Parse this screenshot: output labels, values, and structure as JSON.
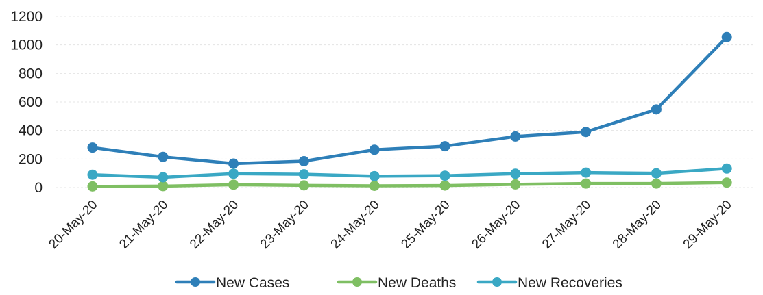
{
  "chart_data": {
    "type": "line",
    "categories": [
      "20-May-20",
      "21-May-20",
      "22-May-20",
      "23-May-20",
      "24-May-20",
      "25-May-20",
      "26-May-20",
      "27-May-20",
      "28-May-20",
      "29-May-20"
    ],
    "series": [
      {
        "name": "New Cases",
        "color": "#2e7fb8",
        "values": [
          280,
          215,
          168,
          185,
          265,
          290,
          358,
          390,
          548,
          1055
        ]
      },
      {
        "name": "New Deaths",
        "color": "#7fbf63",
        "values": [
          8,
          10,
          20,
          15,
          12,
          14,
          22,
          28,
          28,
          35
        ]
      },
      {
        "name": "New Recoveries",
        "color": "#3aa8c4",
        "values": [
          90,
          72,
          97,
          93,
          80,
          83,
          97,
          105,
          100,
          133
        ]
      }
    ],
    "yticks": [
      "0",
      "200",
      "400",
      "600",
      "800",
      "1000",
      "1200"
    ],
    "ylim": [
      0,
      1200
    ],
    "grid": true,
    "legend_position": "bottom"
  }
}
